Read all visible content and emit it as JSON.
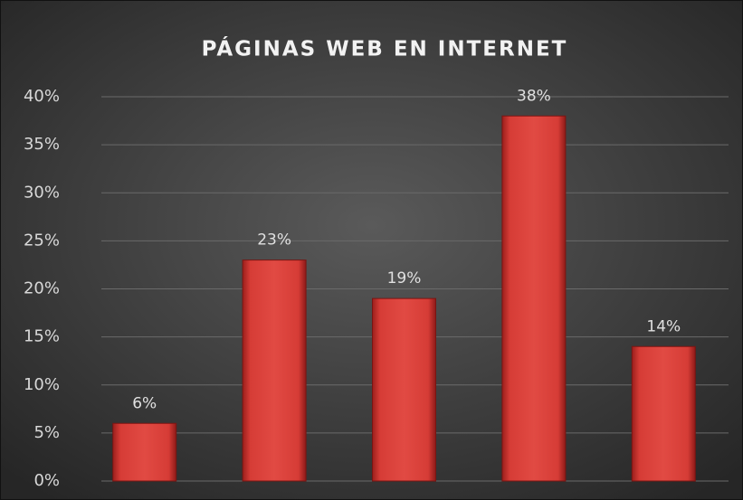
{
  "chart_data": {
    "type": "bar",
    "title": "PÁGINAS WEB EN INTERNET",
    "categories": [
      null,
      null,
      null,
      null,
      null
    ],
    "values": [
      6,
      23,
      19,
      38,
      14
    ],
    "value_labels": [
      "6%",
      "23%",
      "19%",
      "38%",
      "14%"
    ],
    "color": "#d9403a",
    "ylim": [
      0,
      40
    ],
    "yticks": [
      {
        "value": 0,
        "label": "0%"
      },
      {
        "value": 5,
        "label": "5%"
      },
      {
        "value": 10,
        "label": "10%"
      },
      {
        "value": 15,
        "label": "15%"
      },
      {
        "value": 20,
        "label": "20%"
      },
      {
        "value": 25,
        "label": "25%"
      },
      {
        "value": 30,
        "label": "30%"
      },
      {
        "value": 35,
        "label": "35%"
      },
      {
        "value": 40,
        "label": "40%"
      }
    ],
    "grid": true
  }
}
